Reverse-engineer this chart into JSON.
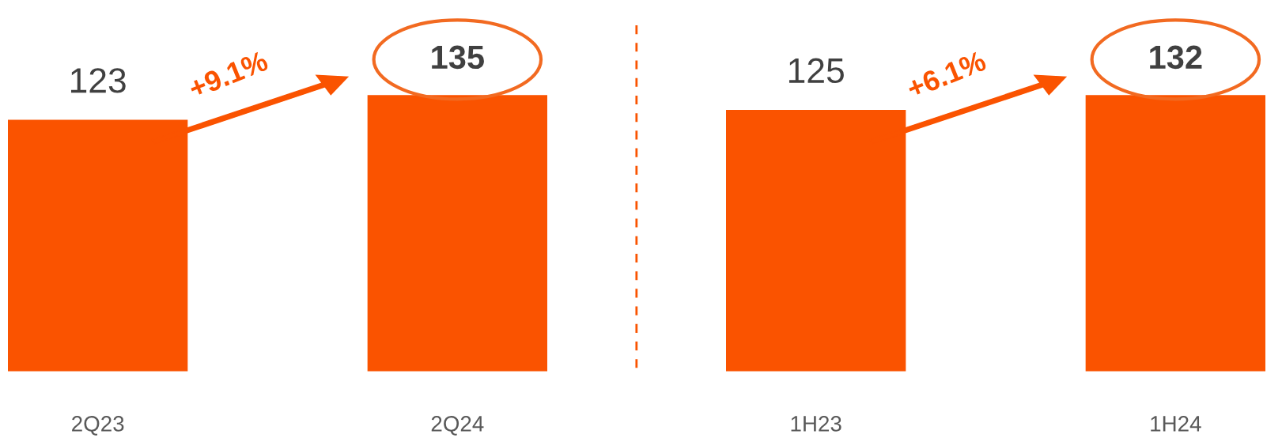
{
  "chart_data": [
    {
      "type": "bar",
      "categories": [
        "2Q23",
        "2Q24"
      ],
      "values": [
        123,
        135
      ],
      "color": "#fa5300",
      "data_labels": true,
      "tick_labels": "x",
      "grid": false,
      "annotations": [
        "+9.1%"
      ]
    },
    {
      "type": "bar",
      "categories": [
        "1H23",
        "1H24"
      ],
      "values": [
        125,
        132
      ],
      "color": "#fa5300",
      "data_labels": true,
      "tick_labels": "x",
      "grid": false,
      "annotations": [
        "+6.1%"
      ]
    }
  ]
}
